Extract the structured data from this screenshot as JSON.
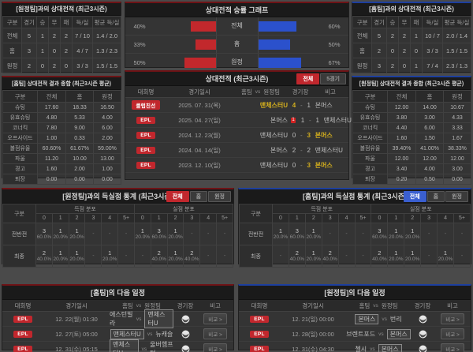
{
  "theme": {
    "red": "#c1272d",
    "blue": "#3a5fd0",
    "gold": "#d4af1e",
    "bar_red": "#c2282c",
    "bar_blue": "#2b51cc"
  },
  "panels": {
    "h2h_left": {
      "title": "[원정팀]과의 상대전적 (최근3시즌)",
      "accent": "red",
      "columns": [
        "구분",
        "경기",
        "승",
        "무",
        "패",
        "득/실",
        "평균 득/실"
      ],
      "rows": [
        [
          "전체",
          "5",
          "1",
          "2",
          "2",
          "7 / 10",
          "1.4 / 2.0"
        ],
        [
          "홈",
          "3",
          "1",
          "0",
          "2",
          "4 / 7",
          "1.3 / 2.3"
        ],
        [
          "원정",
          "2",
          "0",
          "2",
          "0",
          "3 / 3",
          "1.5 / 1.5"
        ]
      ]
    },
    "winrate": {
      "title": "상대전적 승률 그래프",
      "chart_data": {
        "type": "bar",
        "categories": [
          "전체",
          "홈",
          "원정"
        ],
        "series": [
          {
            "name": "홈팀(적색)",
            "values": [
              40,
              33,
              50
            ]
          },
          {
            "name": "원정팀(청색)",
            "values": [
              60,
              50,
              67
            ]
          }
        ],
        "value_labels_left": [
          "40%",
          "33%",
          "50%"
        ],
        "value_labels_right": [
          "60%",
          "50%",
          "67%"
        ],
        "xlim": [
          0,
          100
        ],
        "unit": "%"
      }
    },
    "h2h_right": {
      "title": "[홈팀]과의 상대전적 (최근3시즌)",
      "accent": "blue",
      "columns": [
        "구분",
        "경기",
        "승",
        "무",
        "패",
        "득/실",
        "평균 득/실"
      ],
      "rows": [
        [
          "전체",
          "5",
          "2",
          "2",
          "1",
          "10 / 7",
          "2.0 / 1.4"
        ],
        [
          "홈",
          "2",
          "0",
          "2",
          "0",
          "3 / 3",
          "1.5 / 1.5"
        ],
        [
          "원정",
          "3",
          "2",
          "0",
          "1",
          "7 / 4",
          "2.3 / 1.3"
        ]
      ]
    },
    "sum_left": {
      "title": "[홈팀] 상대전적 결과 종합 (최근3시즌 평균)",
      "accent": "red",
      "columns": [
        "구분",
        "전체",
        "홈",
        "원정"
      ],
      "rows": [
        [
          "슈팅",
          "17.60",
          "18.33",
          "16.50"
        ],
        [
          "유효슈팅",
          "4.80",
          "5.33",
          "4.00"
        ],
        [
          "코너킥",
          "7.80",
          "9.00",
          "6.00"
        ],
        [
          "오프사이드",
          "1.00",
          "0.33",
          "2.00"
        ],
        [
          "볼점유율",
          "60.60%",
          "61.67%",
          "59.00%"
        ],
        [
          "파울",
          "11.20",
          "10.00",
          "13.00"
        ],
        [
          "경고",
          "1.60",
          "2.00",
          "1.00"
        ],
        [
          "퇴장",
          "0.00",
          "0.00",
          "0.00"
        ]
      ]
    },
    "sum_right": {
      "title": "[원정팀] 상대전적 결과 종합 (최근3시즌 평균)",
      "accent": "blue",
      "columns": [
        "구분",
        "전체",
        "홈",
        "원정"
      ],
      "rows": [
        [
          "슈팅",
          "12.00",
          "14.00",
          "10.67"
        ],
        [
          "유효슈팅",
          "3.80",
          "3.00",
          "4.33"
        ],
        [
          "코너킥",
          "4.40",
          "6.00",
          "3.33"
        ],
        [
          "오프사이드",
          "1.60",
          "1.50",
          "1.67"
        ],
        [
          "볼점유율",
          "39.40%",
          "41.00%",
          "38.33%"
        ],
        [
          "파울",
          "12.00",
          "12.00",
          "12.00"
        ],
        [
          "경고",
          "3.40",
          "4.00",
          "3.00"
        ],
        [
          "퇴장",
          "0.20",
          "0.50",
          "0.00"
        ]
      ]
    },
    "matches": {
      "title": "상대전적 (최근3시즌)",
      "toggles": [
        {
          "label": "전체",
          "active": "red"
        },
        {
          "label": "5경기",
          "active": ""
        }
      ],
      "columns": {
        "league": "대회명",
        "date": "경기일시",
        "home": "홈팀",
        "vs": "vs",
        "away": "원정팀",
        "stadium": "경기장",
        "note": "비고"
      },
      "result_button": "결과 >",
      "rows": [
        {
          "league": "클럽친선",
          "date": "2025. 07. 31(목)",
          "home": "맨체스터U",
          "home_score": "4",
          "away_score": "1",
          "away": "본머스",
          "winner": "home",
          "red_card_home": ""
        },
        {
          "league": "EPL",
          "date": "2025. 04. 27(일)",
          "home": "본머스",
          "home_score": "1",
          "away_score": "1",
          "away": "맨체스터U",
          "winner": "",
          "red_card_home": "1"
        },
        {
          "league": "EPL",
          "date": "2024. 12. 23(월)",
          "home": "맨체스터U",
          "home_score": "0",
          "away_score": "3",
          "away": "본머스",
          "winner": "away",
          "red_card_home": ""
        },
        {
          "league": "EPL",
          "date": "2024. 04. 14(일)",
          "home": "본머스",
          "home_score": "2",
          "away_score": "2",
          "away": "맨체스터U",
          "winner": "",
          "red_card_home": ""
        },
        {
          "league": "EPL",
          "date": "2023. 12. 10(일)",
          "home": "맨체스터U",
          "home_score": "0",
          "away_score": "3",
          "away": "본머스",
          "winner": "away",
          "red_card_home": ""
        }
      ]
    },
    "goals_left": {
      "title": "[원정팀]과의 득실점 통계 (최근3시즌)",
      "accent": "red",
      "toggles": [
        {
          "label": "전체",
          "active": "red"
        },
        {
          "label": "홈",
          "active": ""
        },
        {
          "label": "원정",
          "active": ""
        }
      ],
      "col_label": "구분",
      "group_scored": "득점 분포",
      "group_conceded": "실점 분포",
      "bins": [
        "0",
        "1",
        "2",
        "3",
        "4",
        "5+"
      ],
      "rows": [
        {
          "label": "전반전",
          "scored": [
            {
              "n": "3",
              "p": "60.0%"
            },
            {
              "n": "1",
              "p": "20.0%"
            },
            {
              "n": "1",
              "p": "20.0%"
            },
            null,
            null,
            null
          ],
          "conceded": [
            {
              "n": "1",
              "p": "20.0%"
            },
            {
              "n": "3",
              "p": "60.0%"
            },
            {
              "n": "1",
              "p": "20.0%"
            },
            null,
            null,
            null
          ]
        },
        {
          "label": "최종",
          "scored": [
            {
              "n": "2",
              "p": "40.0%"
            },
            {
              "n": "1",
              "p": "20.0%"
            },
            {
              "n": "1",
              "p": "20.0%"
            },
            null,
            {
              "n": "1",
              "p": "20.0%"
            },
            null
          ],
          "conceded": [
            null,
            {
              "n": "2",
              "p": "40.0%"
            },
            {
              "n": "1",
              "p": "20.0%"
            },
            {
              "n": "2",
              "p": "40.0%"
            },
            null,
            null
          ]
        }
      ]
    },
    "goals_right": {
      "title": "[홈팀]과의 득실점 통계 (최근3시즌)",
      "accent": "blue",
      "toggles": [
        {
          "label": "전체",
          "active": "blue"
        },
        {
          "label": "홈",
          "active": ""
        },
        {
          "label": "원정",
          "active": ""
        }
      ],
      "col_label": "구분",
      "group_scored": "득점 분포",
      "group_conceded": "실점 분포",
      "bins": [
        "0",
        "1",
        "2",
        "3",
        "4",
        "5+"
      ],
      "rows": [
        {
          "label": "전반전",
          "scored": [
            {
              "n": "1",
              "p": "20.0%"
            },
            {
              "n": "3",
              "p": "60.0%"
            },
            {
              "n": "1",
              "p": "20.0%"
            },
            null,
            null,
            null
          ],
          "conceded": [
            {
              "n": "3",
              "p": "60.0%"
            },
            {
              "n": "1",
              "p": "20.0%"
            },
            {
              "n": "1",
              "p": "20.0%"
            },
            null,
            null,
            null
          ]
        },
        {
          "label": "최종",
          "scored": [
            null,
            {
              "n": "2",
              "p": "40.0%"
            },
            {
              "n": "1",
              "p": "20.0%"
            },
            {
              "n": "2",
              "p": "40.0%"
            },
            null,
            null
          ],
          "conceded": [
            {
              "n": "2",
              "p": "40.0%"
            },
            {
              "n": "1",
              "p": "20.0%"
            },
            {
              "n": "1",
              "p": "20.0%"
            },
            null,
            {
              "n": "1",
              "p": "20.0%"
            },
            null
          ]
        }
      ]
    },
    "sched_left": {
      "title": "[홈팀]의 다음 일정",
      "accent": "red",
      "columns": {
        "league": "대회명",
        "date": "경기일시",
        "home": "홈팀",
        "vs": "vs",
        "away": "원정팀",
        "stadium": "경기장",
        "note": "비고"
      },
      "compare_button": "비교 >",
      "rows": [
        {
          "league": "EPL",
          "datetime": "12. 22(월) 01:30",
          "home": "애스턴빌라",
          "away": "맨체스터U",
          "boxed": "away"
        },
        {
          "league": "EPL",
          "datetime": "12. 27(토) 05:00",
          "home": "맨체스터U",
          "away": "뉴캐슬",
          "boxed": "home"
        },
        {
          "league": "EPL",
          "datetime": "12. 31(수) 05:15",
          "home": "맨체스터U",
          "away": "울버햄프턴",
          "boxed": "home"
        }
      ]
    },
    "sched_right": {
      "title": "[원정팀]의 다음 일정",
      "accent": "blue",
      "columns": {
        "league": "대회명",
        "date": "경기일시",
        "home": "홈팀",
        "vs": "vs",
        "away": "원정팀",
        "stadium": "경기장",
        "note": "비고"
      },
      "compare_button": "비교 >",
      "rows": [
        {
          "league": "EPL",
          "datetime": "12. 21(일) 00:00",
          "home": "본머스",
          "away": "번리",
          "boxed": "home"
        },
        {
          "league": "EPL",
          "datetime": "12. 28(일) 00:00",
          "home": "브렌트포드",
          "away": "본머스",
          "boxed": "away"
        },
        {
          "league": "EPL",
          "datetime": "12. 31(수) 04:30",
          "home": "첼시",
          "away": "본머스",
          "boxed": "away"
        }
      ]
    }
  }
}
